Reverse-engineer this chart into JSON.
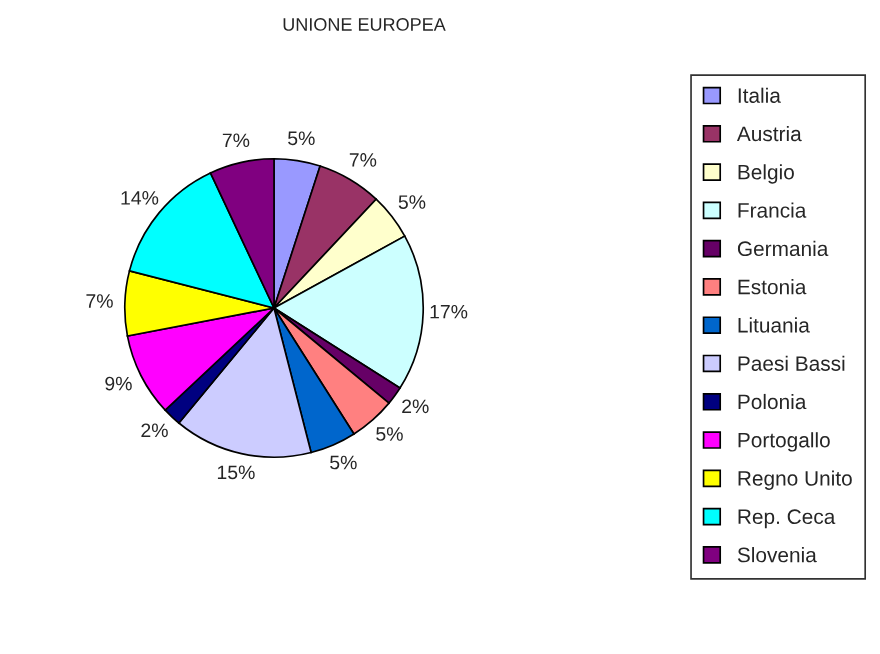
{
  "chart_data": {
    "type": "pie",
    "title": "UNIONE EUROPEA",
    "categories": [
      "Italia",
      "Austria",
      "Belgio",
      "Francia",
      "Germania",
      "Estonia",
      "Lituania",
      "Paesi Bassi",
      "Polonia",
      "Portogallo",
      "Regno Unito",
      "Rep. Ceca",
      "Slovenia"
    ],
    "values": [
      5,
      7,
      5,
      17,
      2,
      5,
      5,
      15,
      2,
      9,
      7,
      14,
      7
    ],
    "value_labels": [
      "5%",
      "7%",
      "5%",
      "17%",
      "2%",
      "5%",
      "5%",
      "15%",
      "2%",
      "9%",
      "7%",
      "14%",
      "7%"
    ],
    "colors": [
      "#9999ff",
      "#993366",
      "#ffffcc",
      "#ccffff",
      "#660066",
      "#ff8080",
      "#0066cc",
      "#ccccff",
      "#000080",
      "#ff00ff",
      "#ffff00",
      "#00ffff",
      "#800080"
    ],
    "legend": "right"
  }
}
